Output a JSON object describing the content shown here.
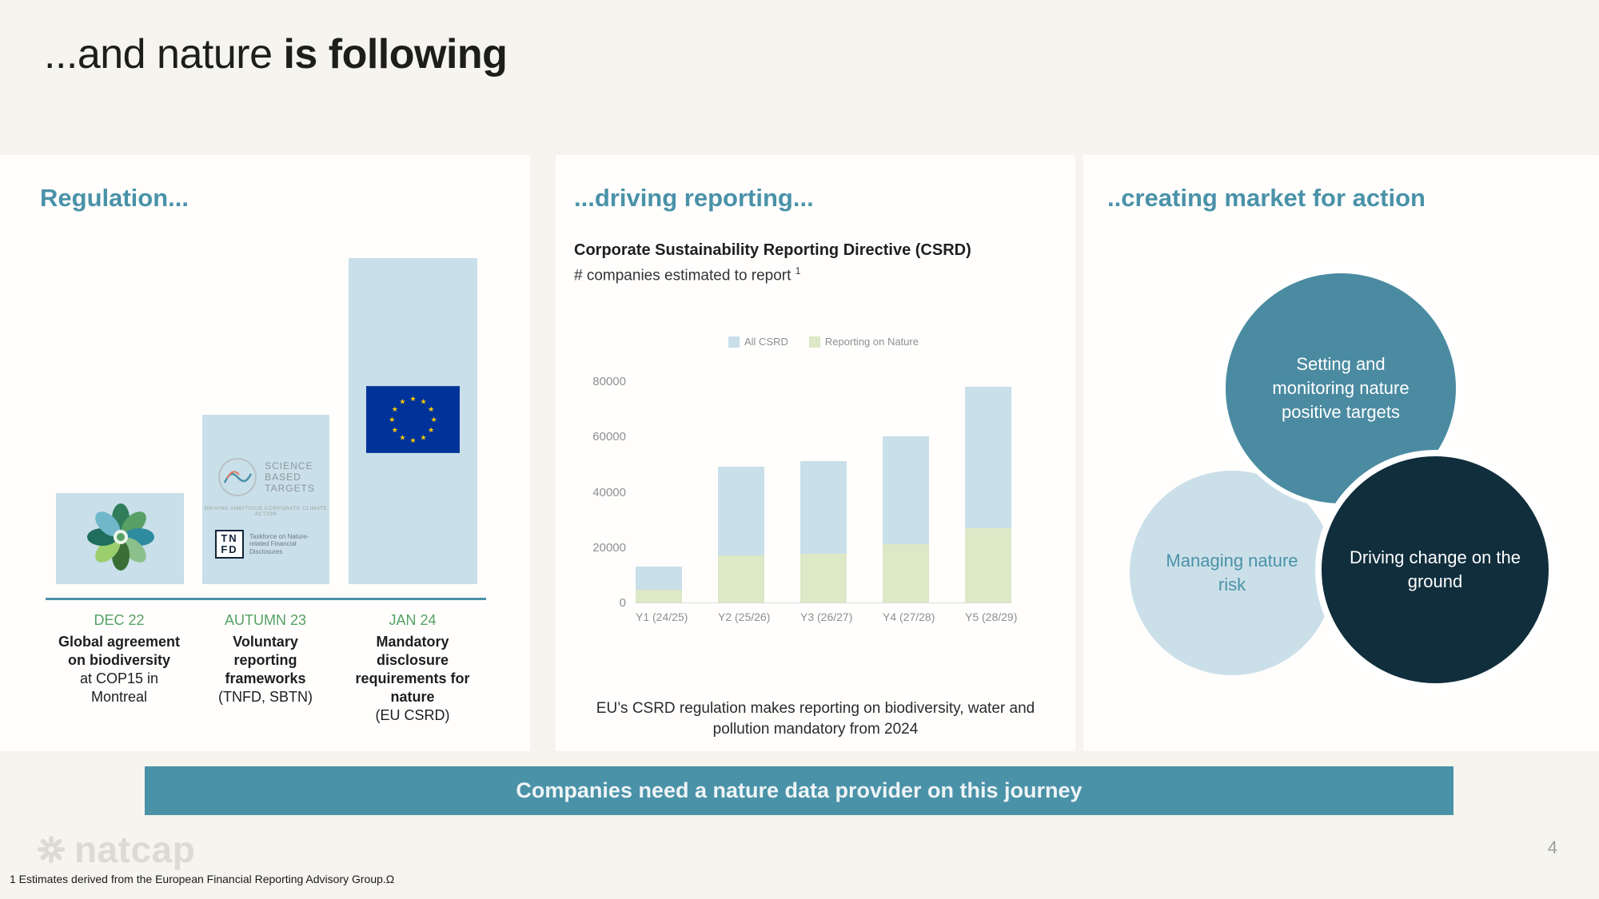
{
  "slide": {
    "title_regular": "...and nature ",
    "title_bold": "is following",
    "banner_text": "Companies need a nature data provider on this journey",
    "page_number": "4",
    "footnote": "1 Estimates derived from the European Financial Reporting Advisory Group.Ω",
    "brand_name": "natcap"
  },
  "colors": {
    "accent_teal": "#4a92a8",
    "bar_blue": "#c9dfe9",
    "bar_green": "#dce8c6",
    "circle_teal": "#4b8ba1",
    "circle_light_blue": "#cbdfe9",
    "circle_dark": "#102e3c",
    "date_green": "#53a161",
    "eu_blue": "#003399",
    "eu_star_yellow": "#ffcc00",
    "background": "#f6f4ef"
  },
  "regulation": {
    "heading": "Regulation...",
    "milestones": [
      {
        "date": "DEC 22",
        "title": "Global agreement on biodiversity",
        "detail": "at COP15 in Montreal",
        "logo": "cop15-biodiversity-emblem"
      },
      {
        "date": "AUTUMN 23",
        "title": "Voluntary reporting frameworks",
        "detail": "(TNFD, SBTN)",
        "logo": "sbt-and-tnfd-logos"
      },
      {
        "date": "JAN 24",
        "title": "Mandatory disclosure requirements for nature",
        "detail": "(EU CSRD)",
        "logo": "eu-flag"
      }
    ],
    "sbt_logo": {
      "line1": "SCIENCE",
      "line2": "BASED",
      "line3": "TARGETS",
      "tagline": "DRIVING AMBITIOUS CORPORATE CLIMATE ACTION"
    },
    "tnfd_logo": {
      "letters_top": "TN",
      "letters_bottom": "FD",
      "caption": "Taskforce on Nature-related Financial Disclosures"
    }
  },
  "reporting": {
    "heading": "...driving reporting...",
    "chart_title": "Corporate Sustainability Reporting Directive (CSRD)",
    "chart_subtitle": "# companies estimated to report",
    "chart_footnote_marker": "1",
    "caption": "EU’s CSRD regulation makes reporting on biodiversity, water and pollution mandatory from 2024"
  },
  "chart_data": {
    "type": "bar",
    "title": "Corporate Sustainability Reporting Directive (CSRD)",
    "subtitle": "# companies estimated to report",
    "categories": [
      "Y1 (24/25)",
      "Y2 (25/26)",
      "Y3 (26/27)",
      "Y4 (27/28)",
      "Y5 (28/29)"
    ],
    "series": [
      {
        "name": "All CSRD",
        "color": "#c9dfe9",
        "values": [
          13000,
          49000,
          51000,
          60000,
          78000
        ]
      },
      {
        "name": "Reporting on Nature",
        "color": "#dce8c6",
        "values": [
          4500,
          17000,
          17500,
          21000,
          27000
        ]
      }
    ],
    "ylim": [
      0,
      80000
    ],
    "yticks": [
      0,
      20000,
      40000,
      60000,
      80000
    ],
    "legend_position": "top",
    "grid": false,
    "note": "Reporting on Nature is a subset drawn at the base of each All CSRD bar"
  },
  "market": {
    "heading": "..creating market for action",
    "circles": [
      {
        "label": "Setting and monitoring nature positive targets",
        "style": "teal"
      },
      {
        "label": "Managing nature risk",
        "style": "light-blue"
      },
      {
        "label": "Driving change on the ground",
        "style": "dark"
      }
    ]
  }
}
